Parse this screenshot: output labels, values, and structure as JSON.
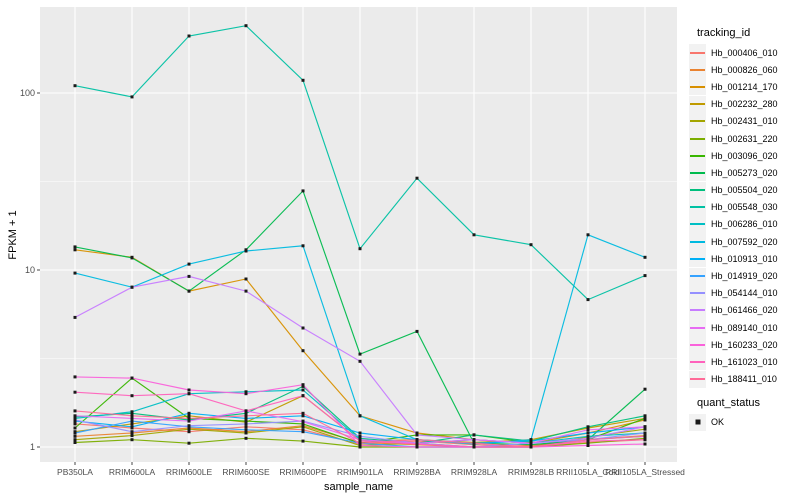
{
  "axes": {
    "x_title": "sample_name",
    "y_title": "FPKM + 1"
  },
  "legend": {
    "tracking_title": "tracking_id",
    "quant_title": "quant_status",
    "quant_ok_label": "OK"
  },
  "style": {
    "panel_bg": "#EBEBEB",
    "grid_color": "#FFFFFF",
    "tick_color": "#333333",
    "tick_label_color": "#4D4D4D",
    "point_color": "#1A1A1A",
    "legend_key_bg": "#F2F2F2"
  },
  "chart_data": {
    "type": "line",
    "title": "",
    "xlabel": "sample_name",
    "ylabel": "FPKM + 1",
    "y_scale": "log10",
    "ylim": [
      1,
      320
    ],
    "y_ticks": [
      1,
      10,
      100
    ],
    "y_minor": [
      3.162,
      31.62
    ],
    "grid": true,
    "legend_position": "right",
    "point_shape": "filled-square",
    "categories": [
      "PB350LA",
      "RRIM600LA",
      "RRIM600LE",
      "RRIM600SE",
      "RRIM600PE",
      "RRIM901LA",
      "RRIM928BA",
      "RRIM928LA",
      "RRIM928LB",
      "RRII105LA_Cold",
      "RRII105LA_Stressed"
    ],
    "quant_status_values": [
      "OK"
    ],
    "series": [
      {
        "name": "Hb_000406_010",
        "color": "#F8766D",
        "values": [
          1.35,
          1.28,
          1.22,
          1.3,
          1.25,
          1.04,
          1.08,
          1.03,
          1.0,
          1.06,
          1.1
        ]
      },
      {
        "name": "Hb_000826_060",
        "color": "#EA8331",
        "values": [
          1.15,
          1.2,
          1.28,
          1.22,
          1.32,
          1.06,
          1.03,
          1.0,
          1.02,
          1.1,
          1.16
        ]
      },
      {
        "name": "Hb_001214_170",
        "color": "#D89000",
        "values": [
          13.0,
          11.8,
          7.6,
          8.9,
          3.5,
          1.5,
          1.2,
          1.1,
          1.05,
          1.2,
          1.42
        ]
      },
      {
        "name": "Hb_002232_280",
        "color": "#C09B00",
        "values": [
          1.22,
          1.35,
          1.5,
          1.38,
          1.95,
          1.08,
          1.1,
          1.06,
          1.1,
          1.28,
          1.45
        ]
      },
      {
        "name": "Hb_002431_010",
        "color": "#A3A500",
        "values": [
          1.1,
          1.16,
          1.26,
          1.2,
          1.3,
          1.02,
          1.05,
          1.0,
          1.0,
          1.14,
          1.26
        ]
      },
      {
        "name": "Hb_002631_220",
        "color": "#7CAE00",
        "values": [
          1.06,
          1.1,
          1.05,
          1.12,
          1.08,
          1.0,
          1.0,
          1.0,
          1.0,
          1.05,
          1.12
        ]
      },
      {
        "name": "Hb_003096_020",
        "color": "#39B600",
        "values": [
          1.28,
          2.45,
          1.45,
          1.4,
          1.35,
          1.05,
          1.17,
          1.17,
          1.06,
          1.1,
          1.45
        ]
      },
      {
        "name": "Hb_005273_020",
        "color": "#00BB4E",
        "values": [
          13.5,
          11.7,
          7.6,
          13.0,
          28.0,
          3.35,
          4.5,
          1.05,
          1.03,
          1.1,
          2.12
        ]
      },
      {
        "name": "Hb_005504_020",
        "color": "#00BF7D",
        "values": [
          1.48,
          1.55,
          1.42,
          1.55,
          2.2,
          1.12,
          1.05,
          1.17,
          1.08,
          1.3,
          1.5
        ]
      },
      {
        "name": "Hb_005548_030",
        "color": "#00C1A3",
        "values": [
          110,
          95,
          210,
          240,
          118,
          13.2,
          33,
          15.8,
          13.9,
          6.8,
          9.3
        ]
      },
      {
        "name": "Hb_006286_010",
        "color": "#00BFC4",
        "values": [
          1.45,
          1.58,
          2.0,
          2.05,
          2.1,
          1.1,
          1.05,
          1.1,
          1.05,
          1.15,
          1.2
        ]
      },
      {
        "name": "Hb_007592_020",
        "color": "#00BAE0",
        "values": [
          9.6,
          8.0,
          10.8,
          12.8,
          13.7,
          1.5,
          1.1,
          1.04,
          1.1,
          15.8,
          11.8
        ]
      },
      {
        "name": "Hb_010913_010",
        "color": "#00B0F6",
        "values": [
          1.4,
          1.3,
          1.55,
          1.45,
          1.5,
          1.2,
          1.1,
          1.05,
          1.08,
          1.2,
          1.3
        ]
      },
      {
        "name": "Hb_014919_020",
        "color": "#35A2FF",
        "values": [
          1.2,
          1.4,
          1.3,
          1.25,
          1.22,
          1.05,
          1.0,
          1.0,
          1.0,
          1.1,
          1.15
        ]
      },
      {
        "name": "Hb_054144_010",
        "color": "#9590FF",
        "values": [
          1.42,
          1.22,
          1.32,
          1.35,
          1.4,
          1.15,
          1.05,
          1.0,
          1.05,
          1.1,
          1.2
        ]
      },
      {
        "name": "Hb_061466_020",
        "color": "#C77CFF",
        "values": [
          5.4,
          8.0,
          9.2,
          7.6,
          4.7,
          3.05,
          1.17,
          1.1,
          1.05,
          1.12,
          1.3
        ]
      },
      {
        "name": "Hb_089140_010",
        "color": "#E76BF3",
        "values": [
          1.5,
          1.45,
          1.4,
          1.6,
          1.39,
          1.1,
          1.05,
          1.1,
          1.05,
          1.25,
          1.3
        ]
      },
      {
        "name": "Hb_160233_020",
        "color": "#FA62DB",
        "values": [
          2.49,
          2.45,
          2.1,
          2.0,
          2.25,
          1.02,
          1.0,
          1.0,
          1.0,
          1.02,
          1.04
        ]
      },
      {
        "name": "Hb_161023_010",
        "color": "#FF62BC",
        "values": [
          2.04,
          1.95,
          2.0,
          1.6,
          1.95,
          1.08,
          1.04,
          1.0,
          1.0,
          1.08,
          1.1
        ]
      },
      {
        "name": "Hb_188411_010",
        "color": "#FF6A98",
        "values": [
          1.6,
          1.5,
          1.45,
          1.5,
          1.55,
          1.05,
          1.1,
          1.05,
          1.0,
          1.1,
          1.15
        ]
      }
    ]
  }
}
